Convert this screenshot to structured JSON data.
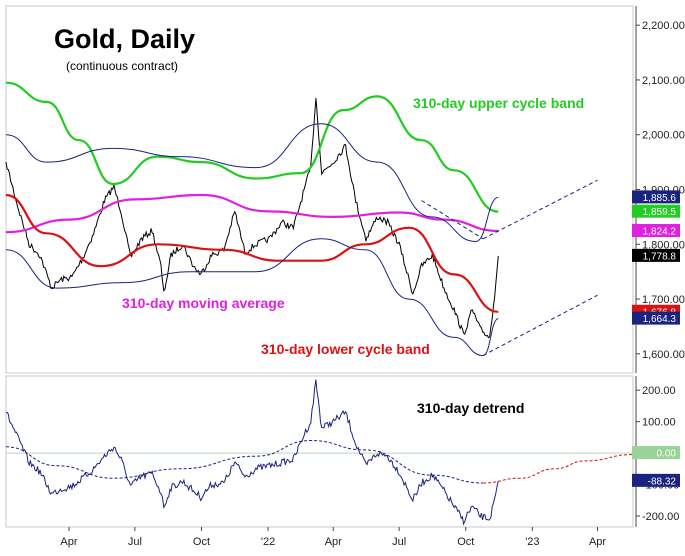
{
  "chart_data": [
    {
      "type": "line",
      "panel": "price",
      "title": "Gold, Daily",
      "subtitle": "(continuous contract)",
      "x_ticks": [
        "Apr",
        "Jul",
        "Oct",
        "'22",
        "Apr",
        "Jul",
        "Oct",
        "'23",
        "Apr"
      ],
      "y_ticks": [
        1600,
        1700,
        1800,
        1900,
        2000,
        2100,
        2200
      ],
      "y_tick_labels": [
        "1,600.00",
        "1,700.00",
        "1,800.00",
        "1,900.00",
        "2,000.00",
        "2,100.00",
        "2,200.00"
      ],
      "ylim": [
        1565,
        2235
      ],
      "x_domain": [
        "2021-01-04",
        "2023-05-20"
      ],
      "series": [
        {
          "role": "price",
          "color": "#000000",
          "x": [
            "2021-01-04",
            "2021-01-20",
            "2021-02-05",
            "2021-02-20",
            "2021-03-08",
            "2021-03-20",
            "2021-04-05",
            "2021-04-20",
            "2021-05-05",
            "2021-05-20",
            "2021-06-02",
            "2021-06-12",
            "2021-06-25",
            "2021-07-10",
            "2021-07-25",
            "2021-08-06",
            "2021-08-10",
            "2021-08-20",
            "2021-09-05",
            "2021-09-20",
            "2021-09-30",
            "2021-10-15",
            "2021-11-01",
            "2021-11-16",
            "2021-11-30",
            "2021-12-15",
            "2022-01-03",
            "2022-01-20",
            "2022-02-05",
            "2022-02-20",
            "2022-03-01",
            "2022-03-08",
            "2022-03-16",
            "2022-04-01",
            "2022-04-18",
            "2022-05-02",
            "2022-05-16",
            "2022-06-01",
            "2022-06-15",
            "2022-07-01",
            "2022-07-20",
            "2022-08-01",
            "2022-08-16",
            "2022-09-01",
            "2022-09-15",
            "2022-09-28",
            "2022-10-10",
            "2022-10-21",
            "2022-11-03",
            "2022-11-10",
            "2022-11-15"
          ],
          "values": [
            1950,
            1870,
            1800,
            1780,
            1720,
            1735,
            1740,
            1775,
            1820,
            1880,
            1905,
            1860,
            1775,
            1810,
            1825,
            1760,
            1710,
            1780,
            1800,
            1760,
            1745,
            1780,
            1790,
            1860,
            1785,
            1800,
            1810,
            1840,
            1830,
            1900,
            1940,
            2070,
            1930,
            1950,
            1980,
            1880,
            1810,
            1850,
            1840,
            1800,
            1710,
            1760,
            1780,
            1720,
            1680,
            1635,
            1680,
            1645,
            1630,
            1710,
            1778.8
          ]
        },
        {
          "role": "310-day moving average",
          "color": "#e020e0",
          "x": [
            "2021-01-04",
            "2021-04-01",
            "2021-07-01",
            "2021-10-01",
            "2022-01-01",
            "2022-04-01",
            "2022-07-01",
            "2022-09-01",
            "2022-11-15"
          ],
          "values": [
            1822,
            1845,
            1882,
            1890,
            1860,
            1850,
            1858,
            1845,
            1824.2
          ]
        },
        {
          "role": "310-day lower cycle band",
          "color": "#dd1111",
          "x": [
            "2021-01-04",
            "2021-03-01",
            "2021-05-15",
            "2021-08-01",
            "2021-11-01",
            "2022-01-15",
            "2022-03-15",
            "2022-05-15",
            "2022-07-15",
            "2022-09-15",
            "2022-11-15"
          ],
          "values": [
            1890,
            1820,
            1760,
            1800,
            1790,
            1770,
            1770,
            1800,
            1830,
            1745,
            1676.8
          ]
        },
        {
          "role": "310-day upper cycle band",
          "color": "#22cc22",
          "x": [
            "2021-01-04",
            "2021-03-01",
            "2021-04-15",
            "2021-06-01",
            "2021-08-01",
            "2021-10-01",
            "2021-12-15",
            "2022-02-15",
            "2022-04-15",
            "2022-06-01",
            "2022-08-01",
            "2022-09-15",
            "2022-11-15"
          ],
          "values": [
            2095,
            2060,
            1990,
            1910,
            1960,
            1950,
            1920,
            1930,
            2045,
            2070,
            1990,
            1935,
            1859.5
          ]
        },
        {
          "role": "channel upper",
          "color": "#1a237e",
          "x": [
            "2021-01-04",
            "2021-03-01",
            "2021-06-01",
            "2021-09-01",
            "2021-12-15",
            "2022-03-15",
            "2022-06-01",
            "2022-08-15",
            "2022-10-15",
            "2022-11-15"
          ],
          "values": [
            2000,
            1950,
            1975,
            1960,
            1940,
            2020,
            1950,
            1850,
            1805,
            1885.6
          ]
        },
        {
          "role": "channel lower",
          "color": "#1a237e",
          "x": [
            "2021-01-04",
            "2021-03-15",
            "2021-06-15",
            "2021-09-15",
            "2021-12-15",
            "2022-03-15",
            "2022-05-15",
            "2022-07-15",
            "2022-09-15",
            "2022-10-25",
            "2022-11-15"
          ],
          "values": [
            1790,
            1720,
            1730,
            1750,
            1750,
            1810,
            1790,
            1700,
            1630,
            1597,
            1664.3
          ]
        }
      ],
      "projections": [
        {
          "color": "#1a237e",
          "x": [
            "2022-08-01",
            "2022-10-25"
          ],
          "values": [
            1880,
            1810
          ]
        },
        {
          "color": "#1a237e",
          "x": [
            "2022-10-25",
            "2023-04-01"
          ],
          "values": [
            1810,
            1917
          ]
        },
        {
          "color": "#1a237e",
          "x": [
            "2022-10-25",
            "2023-04-01"
          ],
          "values": [
            1597,
            1707
          ]
        }
      ],
      "value_badges": [
        {
          "text": "1,885.6",
          "value": 1885.6,
          "color": "#1a237e"
        },
        {
          "text": "1,859.5",
          "value": 1859.5,
          "color": "#22cc22"
        },
        {
          "text": "1,824.2",
          "value": 1824.2,
          "color": "#e020e0"
        },
        {
          "text": "1,778.8",
          "value": 1778.8,
          "color": "#000000"
        },
        {
          "text": "1,676.8",
          "value": 1676.8,
          "color": "#dd1111"
        },
        {
          "text": "1,664.3",
          "value": 1664.3,
          "color": "#1a237e"
        }
      ],
      "annotations": [
        {
          "text": "310-day upper cycle band",
          "color": "#22cc22"
        },
        {
          "text": "310-day moving average",
          "color": "#e020e0"
        },
        {
          "text": "310-day lower cycle band",
          "color": "#dd1111"
        }
      ]
    },
    {
      "type": "line",
      "panel": "detrend",
      "title": "310-day detrend",
      "y_ticks": [
        -200,
        -100,
        0,
        100,
        200
      ],
      "y_tick_labels": [
        "-200.00",
        "-100.00",
        "0.00",
        "100.00",
        "200.00"
      ],
      "ylim": [
        -235,
        245
      ],
      "x_domain": [
        "2021-01-04",
        "2023-05-20"
      ],
      "zero_line": true,
      "series": [
        {
          "role": "detrend oscillator",
          "color": "#1a237e",
          "x": [
            "2021-01-04",
            "2021-01-20",
            "2021-02-05",
            "2021-02-20",
            "2021-03-08",
            "2021-03-20",
            "2021-04-05",
            "2021-04-20",
            "2021-05-05",
            "2021-05-20",
            "2021-06-02",
            "2021-06-12",
            "2021-06-25",
            "2021-07-10",
            "2021-07-25",
            "2021-08-06",
            "2021-08-10",
            "2021-08-20",
            "2021-09-05",
            "2021-09-20",
            "2021-09-30",
            "2021-10-15",
            "2021-11-01",
            "2021-11-16",
            "2021-11-30",
            "2021-12-15",
            "2022-01-03",
            "2022-01-20",
            "2022-02-05",
            "2022-02-20",
            "2022-03-01",
            "2022-03-08",
            "2022-03-16",
            "2022-04-01",
            "2022-04-18",
            "2022-05-02",
            "2022-05-16",
            "2022-06-01",
            "2022-06-15",
            "2022-07-01",
            "2022-07-20",
            "2022-08-01",
            "2022-08-16",
            "2022-09-01",
            "2022-09-15",
            "2022-09-28",
            "2022-10-10",
            "2022-10-21",
            "2022-11-03",
            "2022-11-10",
            "2022-11-15"
          ],
          "values": [
            130,
            50,
            -30,
            -60,
            -130,
            -115,
            -105,
            -80,
            -50,
            -10,
            20,
            -20,
            -105,
            -75,
            -65,
            -125,
            -170,
            -110,
            -90,
            -120,
            -140,
            -100,
            -95,
            -30,
            -75,
            -50,
            -40,
            -30,
            -20,
            60,
            100,
            230,
            80,
            100,
            130,
            30,
            -40,
            0,
            -10,
            -60,
            -150,
            -95,
            -70,
            -120,
            -170,
            -215,
            -170,
            -200,
            -210,
            -150,
            -88.32
          ]
        },
        {
          "role": "centered cycle",
          "color": "#1a237e",
          "dashed": true,
          "x": [
            "2021-01-04",
            "2021-03-15",
            "2021-06-01",
            "2021-09-01",
            "2021-12-15",
            "2022-03-01",
            "2022-05-15",
            "2022-08-15",
            "2022-10-25"
          ],
          "values": [
            20,
            -40,
            -80,
            -50,
            -10,
            40,
            10,
            -70,
            -95
          ]
        },
        {
          "role": "projected cycle",
          "color": "#dd1111",
          "dashed": true,
          "x": [
            "2022-10-25",
            "2022-12-15",
            "2023-02-01",
            "2023-03-15",
            "2023-05-20"
          ],
          "values": [
            -95,
            -80,
            -50,
            -25,
            -5
          ]
        }
      ],
      "value_badges": [
        {
          "text": "0.00",
          "value": 0,
          "color": "#9ad39a"
        },
        {
          "text": "-88.32",
          "value": -88.32,
          "color": "#1a237e"
        }
      ]
    }
  ]
}
